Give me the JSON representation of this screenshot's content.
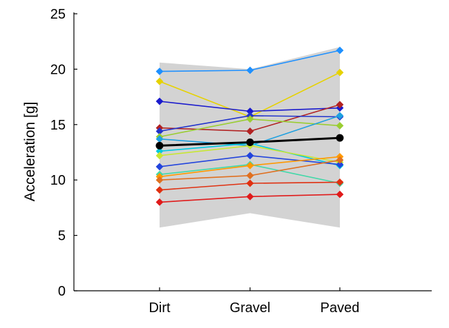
{
  "chart_data": {
    "type": "line",
    "title": "",
    "xlabel": "",
    "ylabel": "Acceleration [g]",
    "categories": [
      "Dirt",
      "Gravel",
      "Paved"
    ],
    "ylim": [
      0,
      25
    ],
    "yticks": [
      "0",
      "5",
      "10",
      "15",
      "20",
      "25"
    ],
    "grid": false,
    "legend": "none",
    "band": {
      "lower": [
        5.7,
        7.0,
        5.7
      ],
      "upper": [
        20.6,
        20.0,
        22.0
      ],
      "color": "#d3d3d3"
    },
    "mean": {
      "values": [
        13.1,
        13.4,
        13.8
      ],
      "color": "#000000"
    },
    "series": [
      {
        "values": [
          19.8,
          19.9,
          21.7
        ],
        "color": "#1e90ff"
      },
      {
        "values": [
          18.9,
          15.7,
          19.7
        ],
        "color": "#e6d200"
      },
      {
        "values": [
          17.1,
          16.2,
          16.5
        ],
        "color": "#1a1acd"
      },
      {
        "values": [
          14.7,
          14.4,
          16.8
        ],
        "color": "#b22222"
      },
      {
        "values": [
          14.4,
          15.8,
          15.7
        ],
        "color": "#2233cc"
      },
      {
        "values": [
          13.9,
          15.5,
          14.9
        ],
        "color": "#9acd32"
      },
      {
        "values": [
          13.7,
          13.1,
          15.8
        ],
        "color": "#1ea0e0"
      },
      {
        "values": [
          12.6,
          13.3,
          11.3
        ],
        "color": "#00c8e0"
      },
      {
        "values": [
          12.2,
          13.1,
          11.6
        ],
        "color": "#c8e632"
      },
      {
        "values": [
          11.2,
          12.2,
          11.4
        ],
        "color": "#2244dd"
      },
      {
        "values": [
          10.5,
          11.4,
          9.7
        ],
        "color": "#40d8a8"
      },
      {
        "values": [
          10.3,
          11.3,
          12.1
        ],
        "color": "#ff9800"
      },
      {
        "values": [
          10.0,
          10.4,
          11.8
        ],
        "color": "#e07020"
      },
      {
        "values": [
          9.1,
          9.7,
          9.8
        ],
        "color": "#e03010"
      },
      {
        "values": [
          8.0,
          8.5,
          8.7
        ],
        "color": "#e01a1a"
      }
    ]
  }
}
